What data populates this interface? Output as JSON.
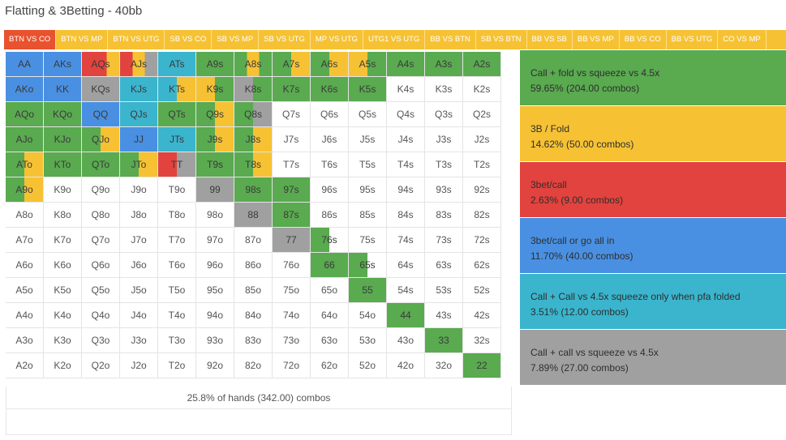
{
  "title": "Flatting & 3Betting - 40bb",
  "tabs": [
    {
      "label": "BTN VS CO",
      "active": true
    },
    {
      "label": "BTN VS MP"
    },
    {
      "label": "BTN VS UTG"
    },
    {
      "label": "SB VS CO"
    },
    {
      "label": "SB VS MP"
    },
    {
      "label": "SB VS UTG"
    },
    {
      "label": "MP VS UTG"
    },
    {
      "label": "UTG1 VS UTG"
    },
    {
      "label": "BB VS BTN"
    },
    {
      "label": "SB VS BTN"
    },
    {
      "label": "BB VS SB"
    },
    {
      "label": "BB VS MP"
    },
    {
      "label": "BB VS CO"
    },
    {
      "label": "BB VS UTG"
    },
    {
      "label": "CO VS MP"
    }
  ],
  "colors": {
    "green": "#5aaa50",
    "yellow": "#f6c234",
    "red": "#e2433e",
    "blue": "#4a90e2",
    "cyan": "#3ab5cd",
    "gray": "#a0a0a0"
  },
  "grid": [
    [
      {
        "l": "AA",
        "c": [
          "blue"
        ]
      },
      {
        "l": "AKs",
        "c": [
          "blue"
        ]
      },
      {
        "l": "AQs",
        "c": [
          "red",
          "red",
          "yellow"
        ]
      },
      {
        "l": "AJs",
        "c": [
          "red",
          "yellow",
          "gray"
        ]
      },
      {
        "l": "ATs",
        "c": [
          "cyan"
        ]
      },
      {
        "l": "A9s",
        "c": [
          "green"
        ]
      },
      {
        "l": "A8s",
        "c": [
          "green",
          "yellow",
          "green"
        ]
      },
      {
        "l": "A7s",
        "c": [
          "green",
          "yellow"
        ]
      },
      {
        "l": "A6s",
        "c": [
          "green",
          "yellow"
        ]
      },
      {
        "l": "A5s",
        "c": [
          "yellow",
          "green"
        ]
      },
      {
        "l": "A4s",
        "c": [
          "green"
        ]
      },
      {
        "l": "A3s",
        "c": [
          "green"
        ]
      },
      {
        "l": "A2s",
        "c": [
          "green"
        ]
      }
    ],
    [
      {
        "l": "AKo",
        "c": [
          "blue"
        ]
      },
      {
        "l": "KK",
        "c": [
          "blue"
        ]
      },
      {
        "l": "KQs",
        "c": [
          "gray"
        ]
      },
      {
        "l": "KJs",
        "c": [
          "cyan"
        ]
      },
      {
        "l": "KTs",
        "c": [
          "cyan",
          "yellow"
        ]
      },
      {
        "l": "K9s",
        "c": [
          "yellow",
          "green"
        ]
      },
      {
        "l": "K8s",
        "c": [
          "gray",
          "green"
        ]
      },
      {
        "l": "K7s",
        "c": [
          "green"
        ]
      },
      {
        "l": "K6s",
        "c": [
          "green"
        ]
      },
      {
        "l": "K5s",
        "c": [
          "green"
        ]
      },
      {
        "l": "K4s",
        "c": []
      },
      {
        "l": "K3s",
        "c": []
      },
      {
        "l": "K2s",
        "c": []
      }
    ],
    [
      {
        "l": "AQo",
        "c": [
          "green"
        ]
      },
      {
        "l": "KQo",
        "c": [
          "green"
        ]
      },
      {
        "l": "QQ",
        "c": [
          "blue"
        ]
      },
      {
        "l": "QJs",
        "c": [
          "cyan"
        ]
      },
      {
        "l": "QTs",
        "c": [
          "green"
        ]
      },
      {
        "l": "Q9s",
        "c": [
          "green",
          "yellow"
        ]
      },
      {
        "l": "Q8s",
        "c": [
          "green",
          "gray"
        ]
      },
      {
        "l": "Q7s",
        "c": []
      },
      {
        "l": "Q6s",
        "c": []
      },
      {
        "l": "Q5s",
        "c": []
      },
      {
        "l": "Q4s",
        "c": []
      },
      {
        "l": "Q3s",
        "c": []
      },
      {
        "l": "Q2s",
        "c": []
      }
    ],
    [
      {
        "l": "AJo",
        "c": [
          "green"
        ]
      },
      {
        "l": "KJo",
        "c": [
          "green"
        ]
      },
      {
        "l": "QJo",
        "c": [
          "green",
          "yellow"
        ]
      },
      {
        "l": "JJ",
        "c": [
          "blue"
        ]
      },
      {
        "l": "JTs",
        "c": [
          "cyan"
        ]
      },
      {
        "l": "J9s",
        "c": [
          "green",
          "yellow"
        ]
      },
      {
        "l": "J8s",
        "c": [
          "green",
          "yellow"
        ]
      },
      {
        "l": "J7s",
        "c": []
      },
      {
        "l": "J6s",
        "c": []
      },
      {
        "l": "J5s",
        "c": []
      },
      {
        "l": "J4s",
        "c": []
      },
      {
        "l": "J3s",
        "c": []
      },
      {
        "l": "J2s",
        "c": []
      }
    ],
    [
      {
        "l": "ATo",
        "c": [
          "green",
          "yellow"
        ]
      },
      {
        "l": "KTo",
        "c": [
          "green"
        ]
      },
      {
        "l": "QTo",
        "c": [
          "green"
        ]
      },
      {
        "l": "JTo",
        "c": [
          "green",
          "yellow"
        ]
      },
      {
        "l": "TT",
        "c": [
          "red",
          "gray"
        ]
      },
      {
        "l": "T9s",
        "c": [
          "green"
        ]
      },
      {
        "l": "T8s",
        "c": [
          "green",
          "yellow"
        ]
      },
      {
        "l": "T7s",
        "c": []
      },
      {
        "l": "T6s",
        "c": []
      },
      {
        "l": "T5s",
        "c": []
      },
      {
        "l": "T4s",
        "c": []
      },
      {
        "l": "T3s",
        "c": []
      },
      {
        "l": "T2s",
        "c": []
      }
    ],
    [
      {
        "l": "A9o",
        "c": [
          "green",
          "yellow"
        ]
      },
      {
        "l": "K9o",
        "c": []
      },
      {
        "l": "Q9o",
        "c": []
      },
      {
        "l": "J9o",
        "c": []
      },
      {
        "l": "T9o",
        "c": []
      },
      {
        "l": "99",
        "c": [
          "gray"
        ]
      },
      {
        "l": "98s",
        "c": [
          "green"
        ]
      },
      {
        "l": "97s",
        "c": [
          "green"
        ]
      },
      {
        "l": "96s",
        "c": []
      },
      {
        "l": "95s",
        "c": []
      },
      {
        "l": "94s",
        "c": []
      },
      {
        "l": "93s",
        "c": []
      },
      {
        "l": "92s",
        "c": []
      }
    ],
    [
      {
        "l": "A8o",
        "c": []
      },
      {
        "l": "K8o",
        "c": []
      },
      {
        "l": "Q8o",
        "c": []
      },
      {
        "l": "J8o",
        "c": []
      },
      {
        "l": "T8o",
        "c": []
      },
      {
        "l": "98o",
        "c": []
      },
      {
        "l": "88",
        "c": [
          "gray"
        ]
      },
      {
        "l": "87s",
        "c": [
          "green"
        ]
      },
      {
        "l": "86s",
        "c": []
      },
      {
        "l": "85s",
        "c": []
      },
      {
        "l": "84s",
        "c": []
      },
      {
        "l": "83s",
        "c": []
      },
      {
        "l": "82s",
        "c": []
      }
    ],
    [
      {
        "l": "A7o",
        "c": []
      },
      {
        "l": "K7o",
        "c": []
      },
      {
        "l": "Q7o",
        "c": []
      },
      {
        "l": "J7o",
        "c": []
      },
      {
        "l": "T7o",
        "c": []
      },
      {
        "l": "97o",
        "c": []
      },
      {
        "l": "87o",
        "c": []
      },
      {
        "l": "77",
        "c": [
          "gray"
        ]
      },
      {
        "l": "76s",
        "c": [
          "green",
          "empty"
        ]
      },
      {
        "l": "75s",
        "c": []
      },
      {
        "l": "74s",
        "c": []
      },
      {
        "l": "73s",
        "c": []
      },
      {
        "l": "72s",
        "c": []
      }
    ],
    [
      {
        "l": "A6o",
        "c": []
      },
      {
        "l": "K6o",
        "c": []
      },
      {
        "l": "Q6o",
        "c": []
      },
      {
        "l": "J6o",
        "c": []
      },
      {
        "l": "T6o",
        "c": []
      },
      {
        "l": "96o",
        "c": []
      },
      {
        "l": "86o",
        "c": []
      },
      {
        "l": "76o",
        "c": []
      },
      {
        "l": "66",
        "c": [
          "green"
        ]
      },
      {
        "l": "65s",
        "c": [
          "green",
          "empty"
        ]
      },
      {
        "l": "64s",
        "c": []
      },
      {
        "l": "63s",
        "c": []
      },
      {
        "l": "62s",
        "c": []
      }
    ],
    [
      {
        "l": "A5o",
        "c": []
      },
      {
        "l": "K5o",
        "c": []
      },
      {
        "l": "Q5o",
        "c": []
      },
      {
        "l": "J5o",
        "c": []
      },
      {
        "l": "T5o",
        "c": []
      },
      {
        "l": "95o",
        "c": []
      },
      {
        "l": "85o",
        "c": []
      },
      {
        "l": "75o",
        "c": []
      },
      {
        "l": "65o",
        "c": []
      },
      {
        "l": "55",
        "c": [
          "green"
        ]
      },
      {
        "l": "54s",
        "c": []
      },
      {
        "l": "53s",
        "c": []
      },
      {
        "l": "52s",
        "c": []
      }
    ],
    [
      {
        "l": "A4o",
        "c": []
      },
      {
        "l": "K4o",
        "c": []
      },
      {
        "l": "Q4o",
        "c": []
      },
      {
        "l": "J4o",
        "c": []
      },
      {
        "l": "T4o",
        "c": []
      },
      {
        "l": "94o",
        "c": []
      },
      {
        "l": "84o",
        "c": []
      },
      {
        "l": "74o",
        "c": []
      },
      {
        "l": "64o",
        "c": []
      },
      {
        "l": "54o",
        "c": []
      },
      {
        "l": "44",
        "c": [
          "green"
        ]
      },
      {
        "l": "43s",
        "c": []
      },
      {
        "l": "42s",
        "c": []
      }
    ],
    [
      {
        "l": "A3o",
        "c": []
      },
      {
        "l": "K3o",
        "c": []
      },
      {
        "l": "Q3o",
        "c": []
      },
      {
        "l": "J3o",
        "c": []
      },
      {
        "l": "T3o",
        "c": []
      },
      {
        "l": "93o",
        "c": []
      },
      {
        "l": "83o",
        "c": []
      },
      {
        "l": "73o",
        "c": []
      },
      {
        "l": "63o",
        "c": []
      },
      {
        "l": "53o",
        "c": []
      },
      {
        "l": "43o",
        "c": []
      },
      {
        "l": "33",
        "c": [
          "green"
        ]
      },
      {
        "l": "32s",
        "c": []
      }
    ],
    [
      {
        "l": "A2o",
        "c": []
      },
      {
        "l": "K2o",
        "c": []
      },
      {
        "l": "Q2o",
        "c": []
      },
      {
        "l": "J2o",
        "c": []
      },
      {
        "l": "T2o",
        "c": []
      },
      {
        "l": "92o",
        "c": []
      },
      {
        "l": "82o",
        "c": []
      },
      {
        "l": "72o",
        "c": []
      },
      {
        "l": "62o",
        "c": []
      },
      {
        "l": "52o",
        "c": []
      },
      {
        "l": "42o",
        "c": []
      },
      {
        "l": "32o",
        "c": []
      },
      {
        "l": "22",
        "c": [
          "green"
        ]
      }
    ]
  ],
  "summary": "25.8% of hands (342.00) combos",
  "legend": [
    {
      "name": "Call + fold vs squeeze vs 4.5x",
      "stats": "59.65% (204.00 combos)",
      "color": "#5aaa50"
    },
    {
      "name": "3B / Fold",
      "stats": "14.62% (50.00 combos)",
      "color": "#f6c234"
    },
    {
      "name": "3bet/call",
      "stats": "2.63% (9.00 combos)",
      "color": "#e2433e"
    },
    {
      "name": "3bet/call or go all in",
      "stats": "11.70% (40.00 combos)",
      "color": "#4a90e2"
    },
    {
      "name": "Call + Call vs 4.5x squeeze only when pfa folded",
      "stats": "3.51% (12.00 combos)",
      "color": "#3ab5cd"
    },
    {
      "name": "Call + call vs squeeze vs 4.5x",
      "stats": "7.89% (27.00 combos)",
      "color": "#a0a0a0"
    }
  ]
}
